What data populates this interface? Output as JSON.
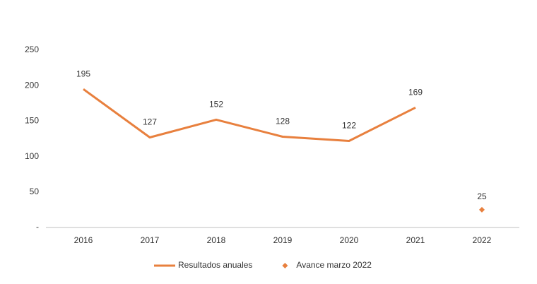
{
  "chart_data": {
    "type": "line",
    "categories": [
      "2016",
      "2017",
      "2018",
      "2019",
      "2020",
      "2021",
      "2022"
    ],
    "series": [
      {
        "name": "Resultados anuales",
        "color": "#e8803e",
        "style": "line",
        "values": [
          195,
          127,
          152,
          128,
          122,
          169,
          null
        ]
      },
      {
        "name": "Avance marzo 2022",
        "color": "#e8803e",
        "style": "marker",
        "values": [
          null,
          null,
          null,
          null,
          null,
          null,
          25
        ]
      }
    ],
    "ylim": [
      0,
      250
    ],
    "yticks": [
      {
        "value": 0,
        "label": "-"
      },
      50,
      100,
      150,
      200,
      250
    ],
    "grid": false,
    "legend": "bottom"
  }
}
